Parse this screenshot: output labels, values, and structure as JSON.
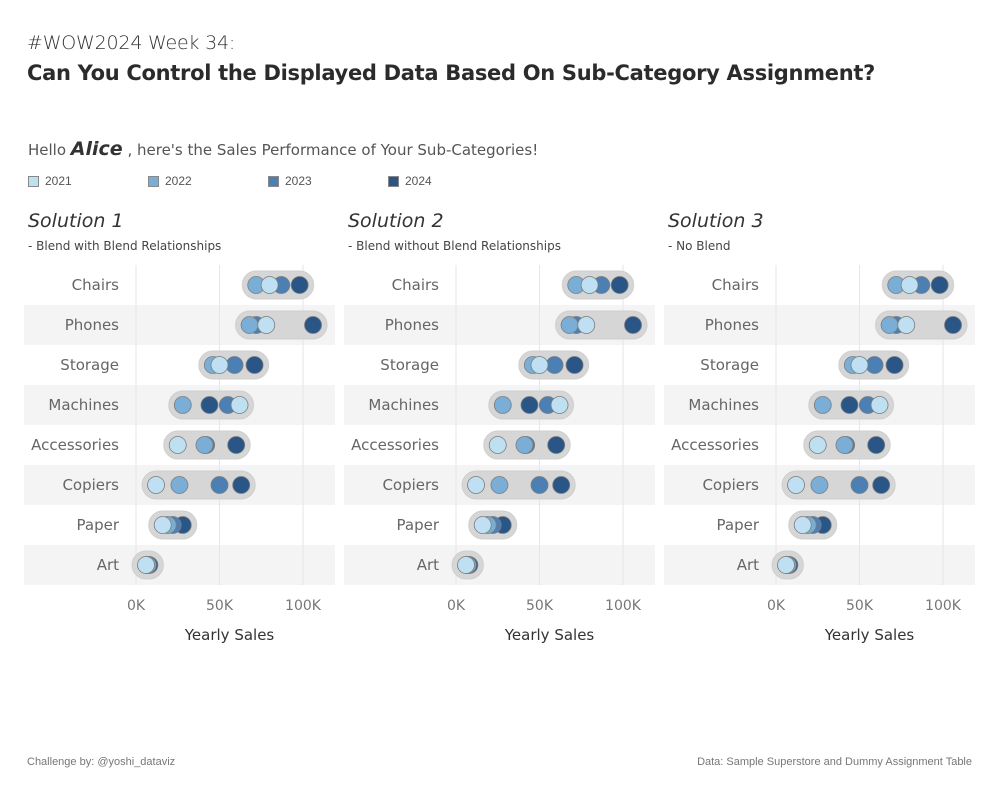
{
  "header": {
    "kicker": "#WOW2024 Week 34:",
    "title": "Can You Control the Displayed Data Based On Sub-Category Assignment?"
  },
  "greeting": {
    "prefix": "Hello ",
    "name": "Alice",
    "suffix": " , here's the Sales Performance of Your Sub-Categories!"
  },
  "legend": [
    {
      "label": "2021",
      "color": "#bfe0f2"
    },
    {
      "label": "2022",
      "color": "#7aaed6"
    },
    {
      "label": "2023",
      "color": "#4c7fb3"
    },
    {
      "label": "2024",
      "color": "#2a5587"
    }
  ],
  "panels": [
    {
      "title": "Solution 1",
      "subtitle": "- Blend with Blend Relationships"
    },
    {
      "title": "Solution 2",
      "subtitle": "- Blend without Blend Relationships"
    },
    {
      "title": "Solution 3",
      "subtitle": "- No Blend"
    }
  ],
  "chart_data": {
    "type": "scatter",
    "subtype": "dot-range (dumbbell) plot",
    "xlabel": "Yearly Sales",
    "ylabel": "",
    "xlim": [
      0,
      100000
    ],
    "x_ticks": [
      0,
      50000,
      100000
    ],
    "x_tick_labels": [
      "0K",
      "50K",
      "100K"
    ],
    "grid": "vertical",
    "legend_position": "top-left",
    "categories": [
      "Chairs",
      "Phones",
      "Storage",
      "Machines",
      "Accessories",
      "Copiers",
      "Paper",
      "Art"
    ],
    "series": [
      {
        "name": "2021",
        "color": "#bfe0f2",
        "values": [
          80000,
          78000,
          50000,
          62000,
          25000,
          12000,
          16000,
          6000
        ]
      },
      {
        "name": "2022",
        "color": "#7aaed6",
        "values": [
          72000,
          68000,
          46000,
          28000,
          41000,
          26000,
          19000,
          7000
        ]
      },
      {
        "name": "2023",
        "color": "#4c7fb3",
        "values": [
          87000,
          72000,
          59000,
          55000,
          42000,
          50000,
          22000,
          7000
        ]
      },
      {
        "name": "2024",
        "color": "#2a5587",
        "values": [
          98000,
          106000,
          71000,
          44000,
          60000,
          63000,
          28000,
          8000
        ]
      }
    ],
    "draw_order": [
      "2024",
      "2023",
      "2022",
      "2021"
    ],
    "panels_share_data": true
  },
  "footer": {
    "left": "Challenge by: @yoshi_dataviz",
    "right": "Data: Sample Superstore and Dummy Assignment Table"
  }
}
